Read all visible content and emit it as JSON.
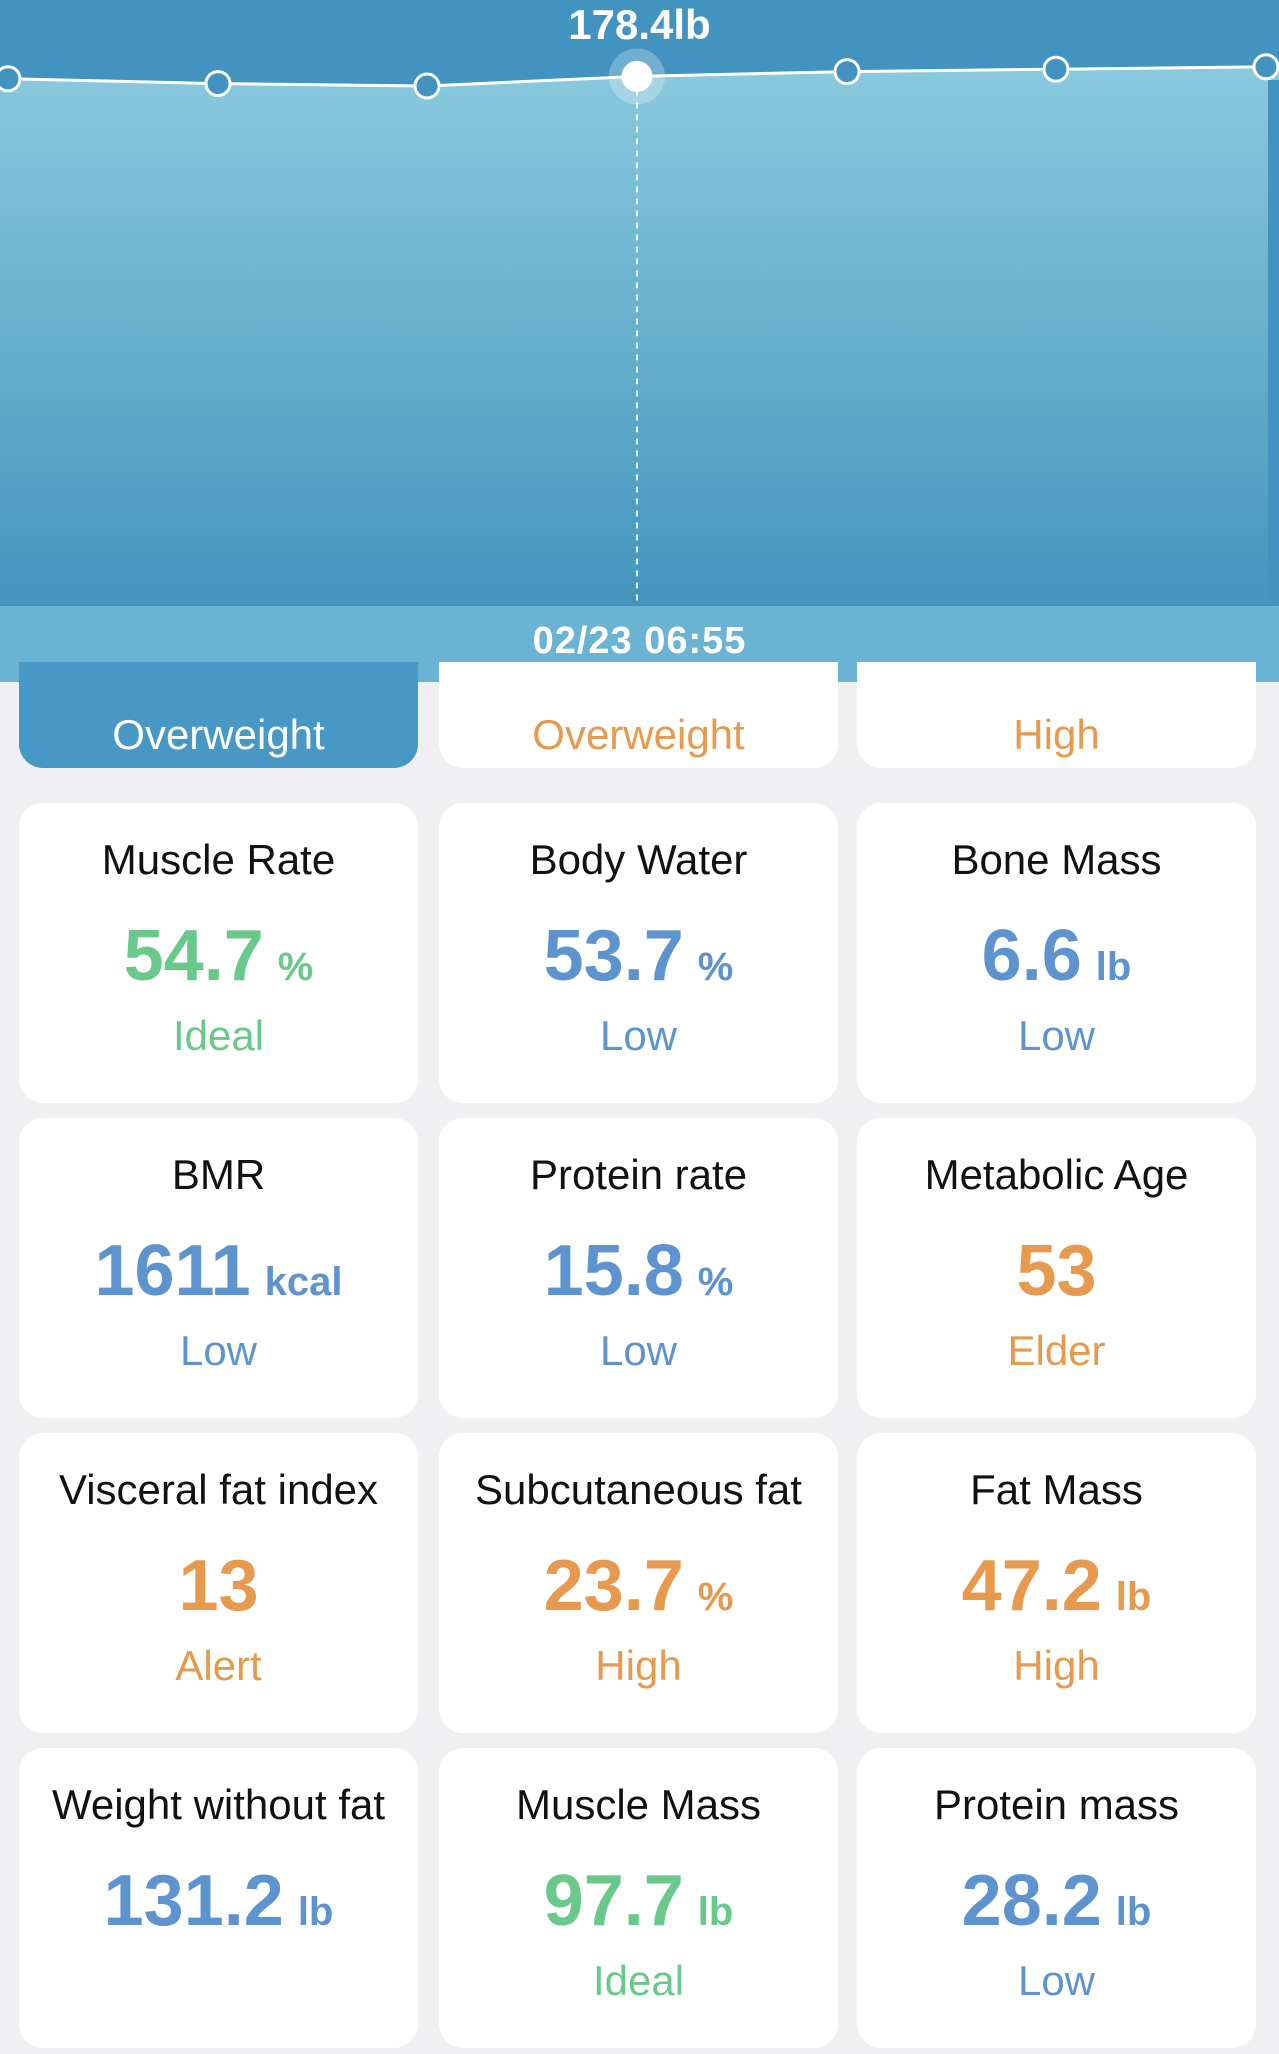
{
  "chart": {
    "weight_label": "178.4lb",
    "date_label": "02/23 06:55",
    "points": [
      178.3,
      178.1,
      178.0,
      178.4,
      178.6,
      178.7,
      178.8
    ],
    "selected_index": 3,
    "colors": {
      "top": "#4393c0",
      "fill_top": "#8ac9de",
      "fill_bottom": "#4395bd",
      "date_bar": "#6ab3d3"
    }
  },
  "status_row": [
    {
      "status": "Overweight",
      "color": "#ffffff",
      "selected": true
    },
    {
      "status": "Overweight",
      "color": "#e79a4e",
      "selected": false
    },
    {
      "status": "High",
      "color": "#e79a4e",
      "selected": false
    }
  ],
  "metrics": [
    {
      "title": "Muscle Rate",
      "value": "54.7",
      "unit": "%",
      "status": "Ideal",
      "tone": "green"
    },
    {
      "title": "Body Water",
      "value": "53.7",
      "unit": "%",
      "status": "Low",
      "tone": "blue"
    },
    {
      "title": "Bone Mass",
      "value": "6.6",
      "unit": "lb",
      "status": "Low",
      "tone": "blue"
    },
    {
      "title": "BMR",
      "value": "1611",
      "unit": "kcal",
      "status": "Low",
      "tone": "blue"
    },
    {
      "title": "Protein rate",
      "value": "15.8",
      "unit": "%",
      "status": "Low",
      "tone": "blue"
    },
    {
      "title": "Metabolic Age",
      "value": "53",
      "unit": "",
      "status": "Elder",
      "tone": "orange"
    },
    {
      "title": "Visceral fat index",
      "value": "13",
      "unit": "",
      "status": "Alert",
      "tone": "orange"
    },
    {
      "title": "Subcutaneous fat",
      "value": "23.7",
      "unit": "%",
      "status": "High",
      "tone": "orange"
    },
    {
      "title": "Fat Mass",
      "value": "47.2",
      "unit": "lb",
      "status": "High",
      "tone": "orange"
    },
    {
      "title": "Weight without fat",
      "value": "131.2",
      "unit": "lb",
      "status": "",
      "tone": "blue"
    },
    {
      "title": "Muscle Mass",
      "value": "97.7",
      "unit": "lb",
      "status": "Ideal",
      "tone": "green"
    },
    {
      "title": "Protein mass",
      "value": "28.2",
      "unit": "lb",
      "status": "Low",
      "tone": "blue"
    }
  ],
  "tone_colors": {
    "green": "#68c98b",
    "blue": "#5d94d0",
    "orange": "#e79a4e"
  }
}
